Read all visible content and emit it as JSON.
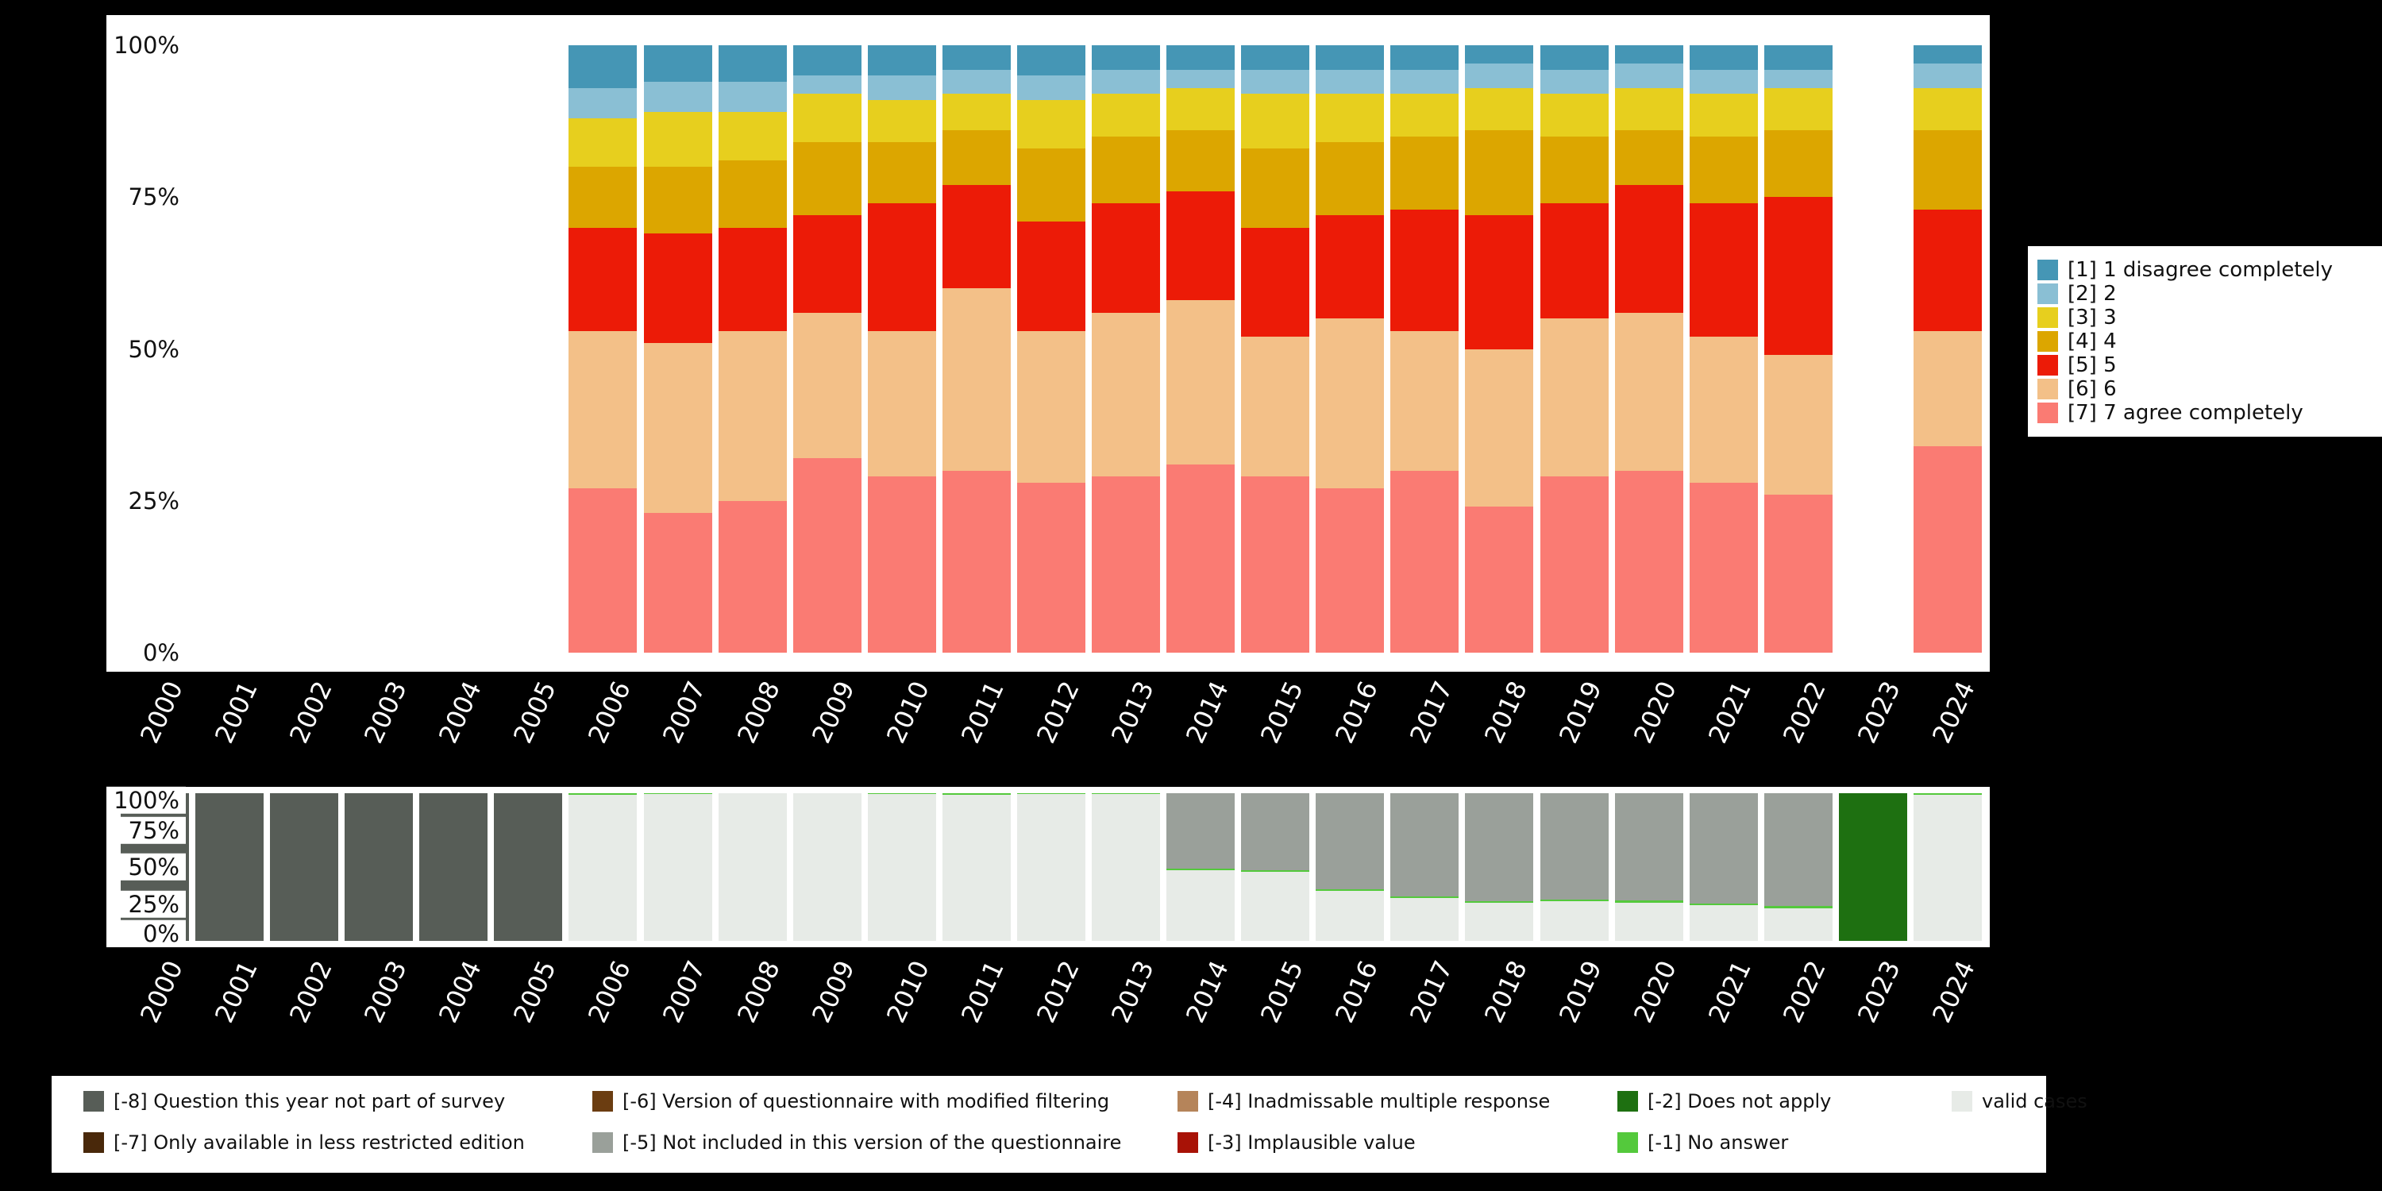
{
  "page": {
    "background": "#000000",
    "panel_background": "#ffffff"
  },
  "chart_data": [
    {
      "id": "responses",
      "type": "bar",
      "stacked": true,
      "unit": "percent",
      "ylim": [
        0,
        100
      ],
      "grid": false,
      "y_ticks": [
        {
          "label": "100%",
          "value": 100
        },
        {
          "label": "75%",
          "value": 75
        },
        {
          "label": "50%",
          "value": 50
        },
        {
          "label": "25%",
          "value": 25
        },
        {
          "label": "0%",
          "value": 0
        }
      ],
      "categories": [
        "2000",
        "2001",
        "2002",
        "2003",
        "2004",
        "2005",
        "2006",
        "2007",
        "2008",
        "2009",
        "2010",
        "2011",
        "2012",
        "2013",
        "2014",
        "2015",
        "2016",
        "2017",
        "2018",
        "2019",
        "2020",
        "2021",
        "2022",
        "2023",
        "2024"
      ],
      "series": [
        {
          "name": "[7] 7 agree completely",
          "color": "#fa7b73",
          "values": [
            null,
            null,
            null,
            null,
            null,
            null,
            27,
            23,
            25,
            32,
            29,
            30,
            28,
            29,
            31,
            29,
            27,
            30,
            24,
            29,
            30,
            28,
            26,
            null,
            34
          ]
        },
        {
          "name": "[6] 6",
          "color": "#f3c088",
          "values": [
            null,
            null,
            null,
            null,
            null,
            null,
            26,
            28,
            28,
            24,
            24,
            30,
            25,
            27,
            27,
            23,
            28,
            23,
            26,
            26,
            26,
            24,
            23,
            null,
            19
          ]
        },
        {
          "name": "[5] 5",
          "color": "#ec1b07",
          "values": [
            null,
            null,
            null,
            null,
            null,
            null,
            17,
            18,
            17,
            16,
            21,
            17,
            18,
            18,
            18,
            18,
            17,
            20,
            22,
            19,
            21,
            22,
            26,
            null,
            20
          ]
        },
        {
          "name": "[4] 4",
          "color": "#dca600",
          "values": [
            null,
            null,
            null,
            null,
            null,
            null,
            10,
            11,
            11,
            12,
            10,
            9,
            12,
            11,
            10,
            13,
            12,
            12,
            14,
            11,
            9,
            11,
            11,
            null,
            13
          ]
        },
        {
          "name": "[3] 3",
          "color": "#e7cf1e",
          "values": [
            null,
            null,
            null,
            null,
            null,
            null,
            8,
            9,
            8,
            8,
            7,
            6,
            8,
            7,
            7,
            9,
            8,
            7,
            7,
            7,
            7,
            7,
            7,
            null,
            7
          ]
        },
        {
          "name": "[2] 2",
          "color": "#8abfd4",
          "values": [
            null,
            null,
            null,
            null,
            null,
            null,
            5,
            5,
            5,
            3,
            4,
            4,
            4,
            4,
            3,
            4,
            4,
            4,
            4,
            4,
            4,
            4,
            3,
            null,
            4
          ]
        },
        {
          "name": "[1] 1 disagree completely",
          "color": "#4596b5",
          "values": [
            null,
            null,
            null,
            null,
            null,
            null,
            7,
            6,
            6,
            5,
            5,
            4,
            5,
            4,
            4,
            4,
            4,
            4,
            3,
            4,
            3,
            4,
            4,
            null,
            3
          ]
        }
      ],
      "legend": {
        "position": "right",
        "entries": [
          {
            "label": "[1] 1 disagree completely",
            "color": "#4596b5"
          },
          {
            "label": "[2] 2",
            "color": "#8abfd4"
          },
          {
            "label": "[3] 3",
            "color": "#e7cf1e"
          },
          {
            "label": "[4] 4",
            "color": "#dca600"
          },
          {
            "label": "[5] 5",
            "color": "#ec1b07"
          },
          {
            "label": "[6] 6",
            "color": "#f3c088"
          },
          {
            "label": "[7] 7 agree completely",
            "color": "#fa7b73"
          }
        ]
      }
    },
    {
      "id": "missings",
      "type": "bar",
      "stacked": true,
      "unit": "percent",
      "ylim": [
        0,
        100
      ],
      "grid": false,
      "y_ticks": [
        {
          "label": "100%",
          "value": 100
        },
        {
          "label": "75%",
          "value": 75
        },
        {
          "label": "50%",
          "value": 50
        },
        {
          "label": "25%",
          "value": 25
        },
        {
          "label": "0%",
          "value": 0
        }
      ],
      "categories": [
        "2000",
        "2001",
        "2002",
        "2003",
        "2004",
        "2005",
        "2006",
        "2007",
        "2008",
        "2009",
        "2010",
        "2011",
        "2012",
        "2013",
        "2014",
        "2015",
        "2016",
        "2017",
        "2018",
        "2019",
        "2020",
        "2021",
        "2022",
        "2023",
        "2024"
      ],
      "series": [
        {
          "name": "valid cases",
          "color": "#e7ebe7",
          "values": [
            0,
            0,
            0,
            0,
            0,
            0,
            99,
            99.5,
            100,
            100,
            99.5,
            99,
            99.5,
            99.5,
            48,
            47,
            34,
            29,
            26,
            27,
            26,
            24,
            22,
            0,
            99
          ]
        },
        {
          "name": "[-1] No answer",
          "color": "#54c93c",
          "values": [
            0,
            0,
            0,
            0,
            0,
            0,
            1,
            0.5,
            0,
            0,
            0.5,
            1,
            0.5,
            0.5,
            1,
            1,
            1,
            1,
            1,
            1,
            1.5,
            1.5,
            1.5,
            0,
            1
          ]
        },
        {
          "name": "[-5] Not included in this version of the questionnaire",
          "color": "#9aa09a",
          "values": [
            0,
            0,
            0,
            0,
            0,
            0,
            0,
            0,
            0,
            0,
            0,
            0,
            0,
            0,
            51,
            52,
            65,
            70,
            73,
            72,
            72.5,
            74.5,
            76.5,
            0,
            0
          ]
        },
        {
          "name": "[-8] Question this year not part of survey",
          "color": "#575d57",
          "values": [
            100,
            100,
            100,
            100,
            100,
            100,
            0,
            0,
            0,
            0,
            0,
            0,
            0,
            0,
            0,
            0,
            0,
            0,
            0,
            0,
            0,
            0,
            0,
            0,
            0
          ]
        },
        {
          "name": "[-2] Does not apply",
          "color": "#1e7011",
          "values": [
            0,
            0,
            0,
            0,
            0,
            0,
            0,
            0,
            0,
            0,
            0,
            0,
            0,
            0,
            0,
            0,
            0,
            0,
            0,
            0,
            0,
            0,
            0,
            100,
            0
          ]
        }
      ],
      "legend": {
        "position": "bottom",
        "rows": [
          [
            {
              "label": "[-8] Question this year not part of survey",
              "color": "#575d57"
            },
            {
              "label": "[-6] Version of questionnaire with modified filtering",
              "color": "#6b3d11"
            },
            {
              "label": "[-4] Inadmissable multiple response",
              "color": "#b5845a"
            },
            {
              "label": "[-2] Does not apply",
              "color": "#1e7011"
            },
            {
              "label": "valid cases",
              "color": "#e7ebe7"
            }
          ],
          [
            {
              "label": "[-7] Only available in less restricted edition",
              "color": "#49280a"
            },
            {
              "label": "[-5] Not included in this version of the questionnaire",
              "color": "#9aa09a"
            },
            {
              "label": "[-3] Implausible value",
              "color": "#a81206"
            },
            {
              "label": "[-1] No answer",
              "color": "#54c93c"
            }
          ]
        ]
      }
    }
  ]
}
